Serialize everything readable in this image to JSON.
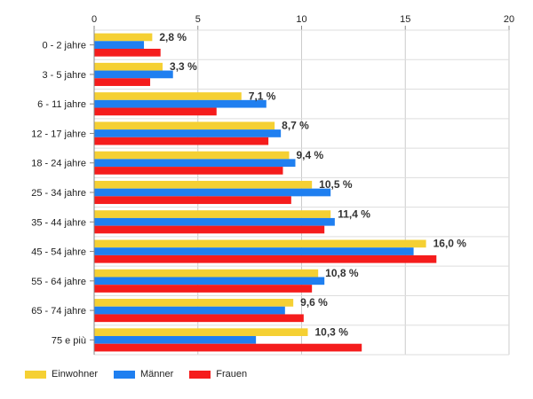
{
  "chart_data": {
    "type": "bar",
    "orientation": "horizontal",
    "title": "",
    "xlabel": "",
    "ylabel": "",
    "xlim": [
      0,
      20
    ],
    "xticks": [
      "0",
      "5",
      "10",
      "15",
      "20"
    ],
    "grid": true,
    "legend_position": "bottom-left",
    "categories": [
      "0 - 2 jahre",
      "3 - 5 jahre",
      "6 - 11 jahre",
      "12 - 17 jahre",
      "18 - 24 jahre",
      "25 - 34 jahre",
      "35 - 44 jahre",
      "45 - 54 jahre",
      "55 - 64 jahre",
      "65 - 74 jahre",
      "75 e più"
    ],
    "series": [
      {
        "name": "Einwohner",
        "color": "#f5d033",
        "values": [
          2.8,
          3.3,
          7.1,
          8.7,
          9.4,
          10.5,
          11.4,
          16.0,
          10.8,
          9.6,
          10.3
        ],
        "labels": [
          "2,8 %",
          "3,3 %",
          "7,1 %",
          "8,7 %",
          "9,4 %",
          "10,5 %",
          "11,4 %",
          "16,0 %",
          "10,8 %",
          "9,6 %",
          "10,3 %"
        ]
      },
      {
        "name": "Männer",
        "color": "#1f7ff0",
        "values": [
          2.4,
          3.8,
          8.3,
          9.0,
          9.7,
          11.4,
          11.6,
          15.4,
          11.1,
          9.2,
          7.8
        ]
      },
      {
        "name": "Frauen",
        "color": "#f51c1c",
        "values": [
          3.2,
          2.7,
          5.9,
          8.4,
          9.1,
          9.5,
          11.1,
          16.5,
          10.5,
          10.1,
          12.9
        ]
      }
    ]
  }
}
